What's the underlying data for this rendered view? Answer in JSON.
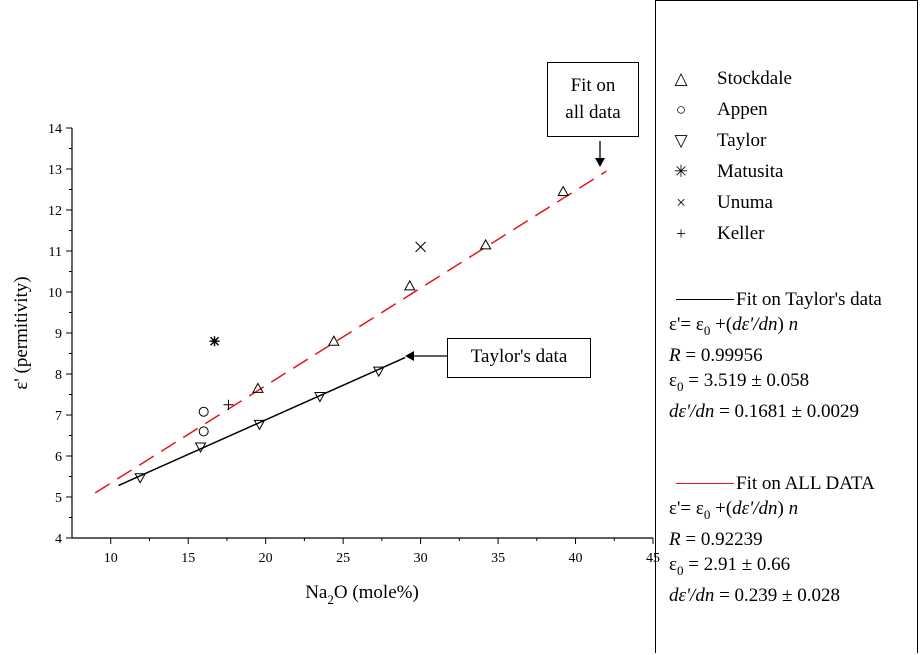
{
  "chart_data": {
    "type": "scatter",
    "title": "",
    "xlabel": "Na2O (mole%)",
    "xlabel_parts": {
      "pre": "Na",
      "sub": "2",
      "post": "O (mole%)"
    },
    "ylabel": "ε' (permitivity)",
    "xlim": [
      7.5,
      45
    ],
    "ylim": [
      4,
      14
    ],
    "x_ticks": [
      "10",
      "15",
      "20",
      "25",
      "30",
      "35",
      "40",
      "45"
    ],
    "y_ticks": [
      "4",
      "5",
      "6",
      "7",
      "8",
      "9",
      "10",
      "11",
      "12",
      "13",
      "14"
    ],
    "series": [
      {
        "name": "Stockdale",
        "marker": "triangle-up",
        "x": [
          19.5,
          24.4,
          29.3,
          34.2,
          39.2
        ],
        "y": [
          7.65,
          8.8,
          10.15,
          11.15,
          12.45
        ]
      },
      {
        "name": "Appen",
        "marker": "circle",
        "x": [
          16.0,
          16.0
        ],
        "y": [
          7.08,
          6.6
        ]
      },
      {
        "name": "Taylor",
        "marker": "triangle-down",
        "x": [
          11.9,
          15.8,
          19.6,
          23.5,
          27.3
        ],
        "y": [
          5.47,
          6.22,
          6.77,
          7.45,
          8.07
        ]
      },
      {
        "name": "Matusita",
        "marker": "asterisk",
        "x": [
          16.7
        ],
        "y": [
          8.8
        ]
      },
      {
        "name": "Unuma",
        "marker": "x",
        "x": [
          30.0
        ],
        "y": [
          11.1
        ]
      },
      {
        "name": "Keller",
        "marker": "plus",
        "x": [
          17.6
        ],
        "y": [
          7.25
        ]
      }
    ],
    "fits": [
      {
        "name": "Fit on Taylor's data",
        "color": "#000000",
        "style": "solid",
        "x": [
          10.5,
          29.0
        ],
        "y": [
          5.28,
          8.4
        ]
      },
      {
        "name": "Fit on ALL DATA",
        "color": "#e8141c",
        "style": "dashed",
        "x": [
          9.0,
          42.0
        ],
        "y": [
          5.1,
          12.95
        ]
      }
    ],
    "annotations": [
      {
        "lines": [
          "Fit on",
          "all data"
        ]
      },
      {
        "lines": [
          "Taylor's data"
        ]
      }
    ]
  },
  "legend": {
    "items": [
      {
        "symbol": "△",
        "label": "Stockdale"
      },
      {
        "symbol": "○",
        "label": "Appen"
      },
      {
        "symbol": "▽",
        "label": "Taylor"
      },
      {
        "symbol": "✳",
        "label": "Matusita"
      },
      {
        "symbol": "×",
        "label": "Unuma"
      },
      {
        "symbol": "+",
        "label": "Keller"
      }
    ],
    "fit_taylor": {
      "title": "Fit on Taylor's data",
      "eq_parts": [
        "ε'= ε",
        "0",
        " +(",
        "dε'/dn",
        ") ",
        "n"
      ],
      "r_label": "R",
      "r_value": " = 0.99956",
      "e0_pre": "ε",
      "e0_sub": "0",
      "e0_value": " = 3.519 ± 0.058",
      "slope_label": "dε'/dn",
      "slope_value": " = 0.1681 ± 0.0029"
    },
    "fit_all": {
      "title": "Fit on ALL DATA",
      "eq_parts": [
        "ε'= ε",
        "0",
        " +(",
        "dε'/dn",
        ") ",
        "n"
      ],
      "r_label": "R",
      "r_value": " = 0.92239",
      "e0_pre": "ε",
      "e0_sub": "0",
      "e0_value": " = 2.91 ± 0.66",
      "slope_label": "dε'/dn",
      "slope_value": " = 0.239 ± 0.028"
    }
  }
}
